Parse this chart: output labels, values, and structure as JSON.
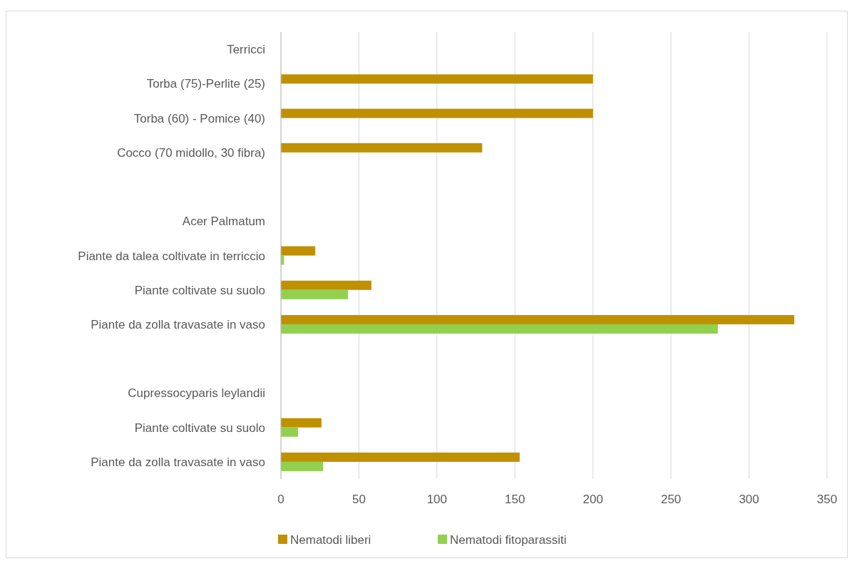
{
  "chart_data": {
    "type": "bar",
    "orientation": "horizontal",
    "categories": [
      "Terricci",
      "Torba (75)-Perlite (25)",
      "Torba (60) - Pomice (40)",
      "Cocco (70 midollo, 30 fibra)",
      null,
      "Acer Palmatum",
      "Piante da talea coltivate in terriccio",
      "Piante coltivate su suolo",
      "Piante da zolla travasate in vaso",
      null,
      "Cupressocyparis leylandii",
      "Piante coltivate su suolo",
      "Piante da zolla travasate in vaso"
    ],
    "series": [
      {
        "name": "Nematodi liberi",
        "color": "#bf9000",
        "values": [
          null,
          200,
          200,
          129,
          null,
          null,
          22,
          58,
          329,
          null,
          null,
          26,
          153
        ]
      },
      {
        "name": "Nematodi fitoparassiti",
        "color": "#92d050",
        "values": [
          null,
          null,
          null,
          null,
          null,
          null,
          2,
          43,
          280,
          null,
          null,
          11,
          27
        ]
      }
    ],
    "xlim": [
      0,
      350
    ],
    "xticks": [
      0,
      50,
      100,
      150,
      200,
      250,
      300,
      350
    ],
    "grid": "x",
    "legend": "bottom"
  }
}
